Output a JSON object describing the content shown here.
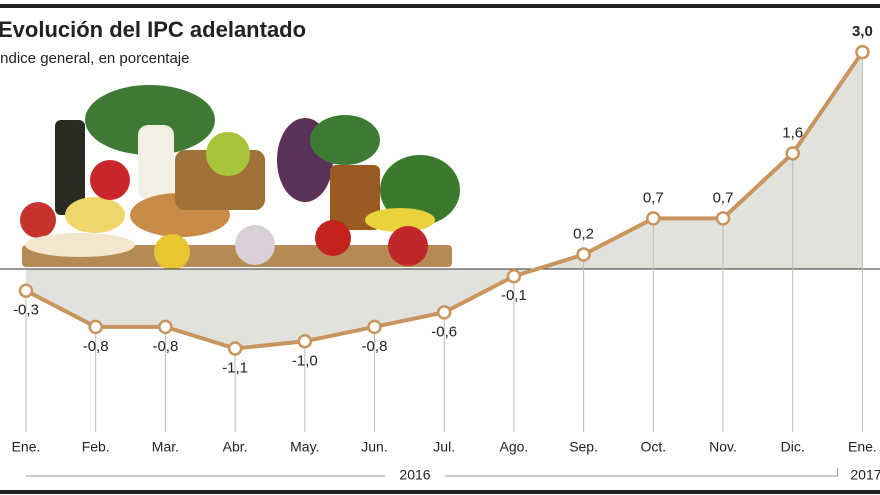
{
  "chart_data": {
    "type": "line",
    "title": "Evolución del IPC adelantado",
    "subtitle": "Índice general, en porcentaje",
    "categories": [
      "Ene.",
      "Feb.",
      "Mar.",
      "Abr.",
      "May.",
      "Jun.",
      "Jul.",
      "Ago.",
      "Sep.",
      "Oct.",
      "Nov.",
      "Dic.",
      "Ene."
    ],
    "values": [
      -0.3,
      -0.8,
      -0.8,
      -1.1,
      -1.0,
      -0.8,
      -0.6,
      -0.1,
      0.2,
      0.7,
      0.7,
      1.6,
      3.0
    ],
    "value_labels": [
      "-0,3",
      "-0,8",
      "-0,8",
      "-1,1",
      "-1,0",
      "-0,8",
      "-0,6",
      "-0,1",
      "0,2",
      "0,7",
      "0,7",
      "1,6",
      "3,0"
    ],
    "color": "#c9955f",
    "area_color": "#e2e2dc",
    "years": [
      "2016",
      "2017"
    ]
  }
}
